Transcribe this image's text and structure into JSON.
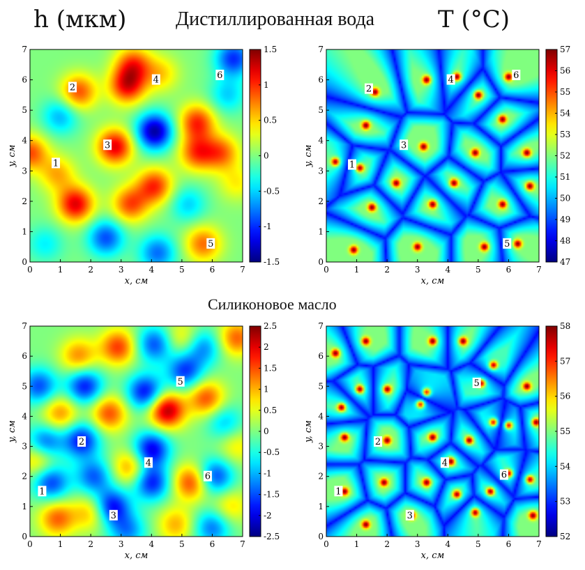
{
  "headers": {
    "left_quantity": "h (мкм)",
    "right_quantity": "T (°C)",
    "top_row_title": "Дистиллированная вода",
    "bottom_row_title": "Силиконовое масло"
  },
  "axes_labels": {
    "x": "x, см",
    "y": "y, см"
  },
  "colors": {
    "colormap": "jet",
    "low": "#00008f",
    "high": "#800000"
  },
  "chart_data": [
    {
      "type": "heatmap",
      "id": "water-h",
      "xlabel": "x, см",
      "ylabel": "y, см",
      "xlim": [
        0,
        7
      ],
      "ylim": [
        0,
        7
      ],
      "xticks": [
        0,
        1,
        2,
        3,
        4,
        5,
        6,
        7
      ],
      "yticks": [
        0,
        1,
        2,
        3,
        4,
        5,
        6,
        7
      ],
      "colorbar": {
        "range": [
          -1.5,
          1.5
        ],
        "ticks": [
          1.5,
          1,
          0.5,
          0,
          -0.5,
          -1,
          -1.5
        ]
      },
      "features": [
        {
          "x": 1.5,
          "y": 1.9,
          "v": 1.2
        },
        {
          "x": 3.3,
          "y": 1.9,
          "v": 0.9
        },
        {
          "x": 4.1,
          "y": 2.5,
          "v": 1.0
        },
        {
          "x": 3.2,
          "y": 5.8,
          "v": 1.1
        },
        {
          "x": 3.4,
          "y": 6.5,
          "v": 0.9
        },
        {
          "x": 1.6,
          "y": 5.6,
          "v": 0.9
        },
        {
          "x": 2.8,
          "y": 3.8,
          "v": 1.2
        },
        {
          "x": 5.5,
          "y": 4.6,
          "v": 1.0
        },
        {
          "x": 5.5,
          "y": 3.6,
          "v": 0.9
        },
        {
          "x": 6.3,
          "y": 3.6,
          "v": 0.8
        },
        {
          "x": 5.7,
          "y": 0.6,
          "v": 0.8
        },
        {
          "x": 0.0,
          "y": 3.6,
          "v": 0.9
        },
        {
          "x": 0.9,
          "y": 2.9,
          "v": 0.6
        },
        {
          "x": 4.3,
          "y": 6.2,
          "v": 0.5
        },
        {
          "x": 6.8,
          "y": 2.6,
          "v": 0.4
        },
        {
          "x": 4.1,
          "y": 4.3,
          "v": -1.4
        },
        {
          "x": 2.5,
          "y": 0.8,
          "v": -0.9
        },
        {
          "x": 6.7,
          "y": 6.7,
          "v": -1.0
        },
        {
          "x": 4.2,
          "y": 0.3,
          "v": -0.8
        },
        {
          "x": 1.0,
          "y": 4.8,
          "v": -0.6
        },
        {
          "x": 0.5,
          "y": 0.6,
          "v": -0.4
        },
        {
          "x": 5.2,
          "y": 1.9,
          "v": -0.5
        },
        {
          "x": 6.5,
          "y": 5.5,
          "v": -0.5
        }
      ],
      "markers": [
        {
          "label": "1",
          "x": 0.85,
          "y": 3.25
        },
        {
          "label": "2",
          "x": 1.4,
          "y": 5.75
        },
        {
          "label": "3",
          "x": 2.55,
          "y": 3.85
        },
        {
          "label": "4",
          "x": 4.15,
          "y": 6.0
        },
        {
          "label": "5",
          "x": 5.95,
          "y": 0.6
        },
        {
          "label": "6",
          "x": 6.25,
          "y": 6.15
        }
      ]
    },
    {
      "type": "heatmap",
      "id": "water-t",
      "xlabel": "x, см",
      "ylabel": "y, см",
      "xlim": [
        0,
        7
      ],
      "ylim": [
        0,
        7
      ],
      "xticks": [
        0,
        1,
        2,
        3,
        4,
        5,
        6,
        7
      ],
      "yticks": [
        0,
        1,
        2,
        3,
        4,
        5,
        6,
        7
      ],
      "colorbar": {
        "range": [
          47,
          57
        ],
        "ticks": [
          57,
          56,
          55,
          54,
          53,
          52,
          51,
          50,
          49,
          48,
          47
        ]
      },
      "cells": [
        {
          "x": 0.3,
          "y": 3.3
        },
        {
          "x": 1.6,
          "y": 5.6
        },
        {
          "x": 3.3,
          "y": 6.0
        },
        {
          "x": 4.3,
          "y": 6.1
        },
        {
          "x": 6.0,
          "y": 6.1
        },
        {
          "x": 1.3,
          "y": 4.5
        },
        {
          "x": 3.2,
          "y": 3.8
        },
        {
          "x": 4.9,
          "y": 3.6
        },
        {
          "x": 5.8,
          "y": 4.7
        },
        {
          "x": 6.6,
          "y": 3.6
        },
        {
          "x": 1.1,
          "y": 3.1
        },
        {
          "x": 1.5,
          "y": 1.8
        },
        {
          "x": 3.5,
          "y": 1.9
        },
        {
          "x": 4.2,
          "y": 2.6
        },
        {
          "x": 5.8,
          "y": 1.9
        },
        {
          "x": 6.3,
          "y": 0.6
        },
        {
          "x": 5.2,
          "y": 0.5
        },
        {
          "x": 0.9,
          "y": 0.4
        },
        {
          "x": 3.0,
          "y": 0.5
        },
        {
          "x": 2.3,
          "y": 2.6
        },
        {
          "x": 6.7,
          "y": 2.5
        },
        {
          "x": 5.0,
          "y": 5.5
        }
      ],
      "markers": [
        {
          "label": "1",
          "x": 0.85,
          "y": 3.2
        },
        {
          "label": "2",
          "x": 1.4,
          "y": 5.7
        },
        {
          "label": "3",
          "x": 2.55,
          "y": 3.85
        },
        {
          "label": "4",
          "x": 4.1,
          "y": 6.0
        },
        {
          "label": "5",
          "x": 5.95,
          "y": 0.6
        },
        {
          "label": "6",
          "x": 6.25,
          "y": 6.15
        }
      ]
    },
    {
      "type": "heatmap",
      "id": "oil-h",
      "xlabel": "x, см",
      "ylabel": "y, см",
      "xlim": [
        0,
        7
      ],
      "ylim": [
        0,
        7
      ],
      "xticks": [
        0,
        1,
        2,
        3,
        4,
        5,
        6,
        7
      ],
      "yticks": [
        0,
        1,
        2,
        3,
        4,
        5,
        6,
        7
      ],
      "colorbar": {
        "range": [
          -2.5,
          2.5
        ],
        "ticks": [
          2.5,
          2,
          1.5,
          1,
          0.5,
          0,
          -0.5,
          -1,
          -1.5,
          -2,
          -2.5
        ]
      },
      "features": [
        {
          "x": 4.5,
          "y": 4.2,
          "v": 2.3
        },
        {
          "x": 5.8,
          "y": 4.6,
          "v": 1.5
        },
        {
          "x": 2.6,
          "y": 4.1,
          "v": 1.5
        },
        {
          "x": 1.0,
          "y": 4.1,
          "v": 1.2
        },
        {
          "x": 2.9,
          "y": 6.3,
          "v": 1.6
        },
        {
          "x": 1.6,
          "y": 6.0,
          "v": 1.2
        },
        {
          "x": 5.3,
          "y": 1.8,
          "v": 1.6
        },
        {
          "x": 0.9,
          "y": 0.6,
          "v": 1.4
        },
        {
          "x": 2.0,
          "y": 0.8,
          "v": 1.0
        },
        {
          "x": 3.3,
          "y": 2.3,
          "v": 1.2
        },
        {
          "x": 0.3,
          "y": 2.6,
          "v": 1.2
        },
        {
          "x": 6.8,
          "y": 6.6,
          "v": 1.4
        },
        {
          "x": 5.0,
          "y": 6.6,
          "v": 0.8
        },
        {
          "x": 4.8,
          "y": 0.4,
          "v": 1.0
        },
        {
          "x": 6.6,
          "y": 1.0,
          "v": 0.8
        },
        {
          "x": 6.8,
          "y": 3.0,
          "v": 0.7
        },
        {
          "x": 0.3,
          "y": 5.0,
          "v": -1.5
        },
        {
          "x": 1.8,
          "y": 5.0,
          "v": -1.8
        },
        {
          "x": 3.8,
          "y": 4.8,
          "v": -1.9
        },
        {
          "x": 5.1,
          "y": 5.5,
          "v": -1.6
        },
        {
          "x": 0.5,
          "y": 3.1,
          "v": -1.6
        },
        {
          "x": 1.7,
          "y": 3.2,
          "v": -1.8
        },
        {
          "x": 4.0,
          "y": 2.9,
          "v": -2.0
        },
        {
          "x": 4.0,
          "y": 1.8,
          "v": -1.8
        },
        {
          "x": 0.7,
          "y": 1.8,
          "v": -1.6
        },
        {
          "x": 2.1,
          "y": 2.0,
          "v": -1.4
        },
        {
          "x": 2.7,
          "y": 1.0,
          "v": -1.9
        },
        {
          "x": 4.1,
          "y": 6.4,
          "v": -1.5
        },
        {
          "x": 5.7,
          "y": 6.3,
          "v": -1.2
        },
        {
          "x": 6.1,
          "y": 2.0,
          "v": -1.6
        },
        {
          "x": 6.4,
          "y": 3.8,
          "v": -0.9
        },
        {
          "x": 3.2,
          "y": 0.2,
          "v": -1.2
        },
        {
          "x": 6.0,
          "y": 0.3,
          "v": -1.3
        }
      ],
      "markers": [
        {
          "label": "1",
          "x": 0.4,
          "y": 1.5
        },
        {
          "label": "2",
          "x": 1.7,
          "y": 3.15
        },
        {
          "label": "3",
          "x": 2.75,
          "y": 0.7
        },
        {
          "label": "4",
          "x": 3.9,
          "y": 2.45
        },
        {
          "label": "5",
          "x": 4.95,
          "y": 5.15
        },
        {
          "label": "6",
          "x": 5.85,
          "y": 2.0
        }
      ]
    },
    {
      "type": "heatmap",
      "id": "oil-t",
      "xlabel": "x, см",
      "ylabel": "y, см",
      "xlim": [
        0,
        7
      ],
      "ylim": [
        0,
        7
      ],
      "xticks": [
        0,
        1,
        2,
        3,
        4,
        5,
        6,
        7
      ],
      "yticks": [
        0,
        1,
        2,
        3,
        4,
        5,
        6,
        7
      ],
      "colorbar": {
        "range": [
          52,
          58
        ],
        "ticks": [
          58,
          57,
          56,
          55,
          54,
          53,
          52
        ]
      },
      "cells": [
        {
          "x": 1.3,
          "y": 6.5
        },
        {
          "x": 3.5,
          "y": 6.5
        },
        {
          "x": 4.5,
          "y": 6.5
        },
        {
          "x": 0.3,
          "y": 6.1
        },
        {
          "x": 5.5,
          "y": 5.7
        },
        {
          "x": 6.6,
          "y": 5.0
        },
        {
          "x": 1.1,
          "y": 4.9
        },
        {
          "x": 2.0,
          "y": 4.9
        },
        {
          "x": 3.3,
          "y": 4.8
        },
        {
          "x": 3.1,
          "y": 4.4
        },
        {
          "x": 5.1,
          "y": 5.1
        },
        {
          "x": 0.5,
          "y": 4.3
        },
        {
          "x": 6.0,
          "y": 3.7
        },
        {
          "x": 5.5,
          "y": 3.8
        },
        {
          "x": 6.9,
          "y": 3.8
        },
        {
          "x": 0.6,
          "y": 3.3
        },
        {
          "x": 2.0,
          "y": 3.2
        },
        {
          "x": 3.5,
          "y": 3.3
        },
        {
          "x": 4.7,
          "y": 3.2
        },
        {
          "x": 4.1,
          "y": 2.5
        },
        {
          "x": 6.0,
          "y": 2.1
        },
        {
          "x": 0.6,
          "y": 1.5
        },
        {
          "x": 1.9,
          "y": 1.8
        },
        {
          "x": 3.3,
          "y": 1.8
        },
        {
          "x": 4.3,
          "y": 1.4
        },
        {
          "x": 5.4,
          "y": 1.5
        },
        {
          "x": 6.7,
          "y": 1.9
        },
        {
          "x": 2.8,
          "y": 0.7
        },
        {
          "x": 4.9,
          "y": 0.8
        },
        {
          "x": 6.8,
          "y": 0.7
        },
        {
          "x": 1.3,
          "y": 0.4
        }
      ],
      "markers": [
        {
          "label": "1",
          "x": 0.4,
          "y": 1.5
        },
        {
          "label": "2",
          "x": 1.7,
          "y": 3.15
        },
        {
          "label": "3",
          "x": 2.75,
          "y": 0.7
        },
        {
          "label": "4",
          "x": 3.9,
          "y": 2.45
        },
        {
          "label": "5",
          "x": 4.95,
          "y": 5.1
        },
        {
          "label": "6",
          "x": 5.85,
          "y": 2.05
        }
      ]
    }
  ]
}
